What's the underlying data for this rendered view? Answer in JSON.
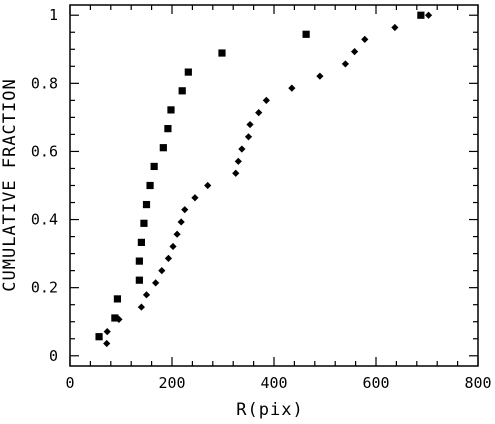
{
  "chart_data": {
    "type": "scatter",
    "xlabel": "R(pix)",
    "ylabel": "CUMULATIVE FRACTION",
    "xlim": [
      0,
      800
    ],
    "ylim": [
      -0.03,
      1.03
    ],
    "x_ticks": [
      0,
      200,
      400,
      600,
      800
    ],
    "y_ticks": [
      0,
      0.2,
      0.4,
      0.6,
      0.8,
      1
    ],
    "grid": false,
    "legend": "none",
    "series": [
      {
        "marker": "square",
        "color": "#000000",
        "points": [
          [
            57,
            0.056
          ],
          [
            88,
            0.111
          ],
          [
            93,
            0.167
          ],
          [
            136,
            0.222
          ],
          [
            136,
            0.278
          ],
          [
            140,
            0.333
          ],
          [
            145,
            0.389
          ],
          [
            150,
            0.444
          ],
          [
            157,
            0.5
          ],
          [
            165,
            0.556
          ],
          [
            183,
            0.611
          ],
          [
            192,
            0.667
          ],
          [
            198,
            0.722
          ],
          [
            220,
            0.778
          ],
          [
            232,
            0.833
          ],
          [
            298,
            0.889
          ],
          [
            463,
            0.944
          ],
          [
            688,
            1.0
          ]
        ]
      },
      {
        "marker": "diamond",
        "color": "#000000",
        "points": [
          [
            72,
            0.036
          ],
          [
            73,
            0.071
          ],
          [
            96,
            0.107
          ],
          [
            140,
            0.143
          ],
          [
            150,
            0.179
          ],
          [
            168,
            0.214
          ],
          [
            180,
            0.25
          ],
          [
            193,
            0.286
          ],
          [
            202,
            0.321
          ],
          [
            210,
            0.357
          ],
          [
            218,
            0.393
          ],
          [
            225,
            0.429
          ],
          [
            245,
            0.464
          ],
          [
            270,
            0.5
          ],
          [
            325,
            0.536
          ],
          [
            330,
            0.571
          ],
          [
            337,
            0.607
          ],
          [
            350,
            0.643
          ],
          [
            353,
            0.679
          ],
          [
            370,
            0.714
          ],
          [
            385,
            0.75
          ],
          [
            435,
            0.786
          ],
          [
            490,
            0.821
          ],
          [
            540,
            0.857
          ],
          [
            558,
            0.893
          ],
          [
            578,
            0.929
          ],
          [
            637,
            0.964
          ],
          [
            703,
            1.0
          ]
        ]
      }
    ]
  }
}
